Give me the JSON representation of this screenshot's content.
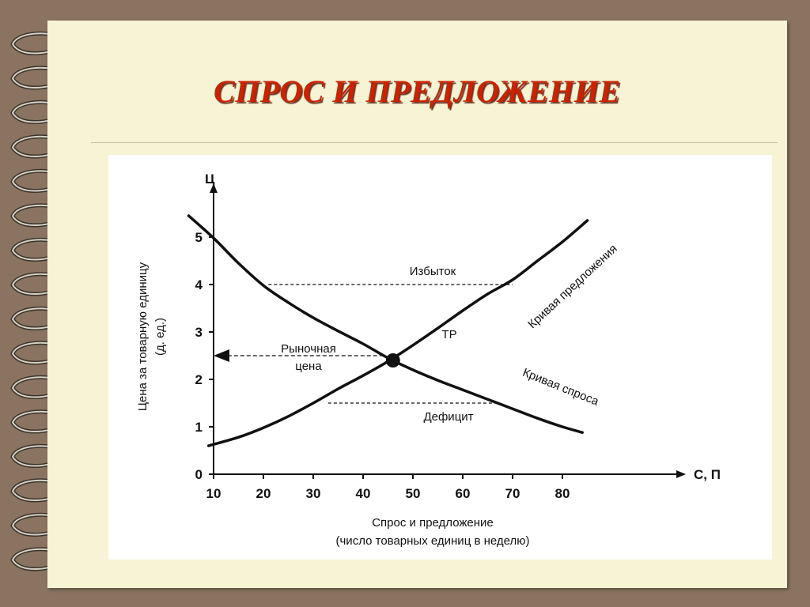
{
  "title": "СПРОС И ПРЕДЛОЖЕНИЕ",
  "colors": {
    "background": "#8a7461",
    "page": "#f7f3d5",
    "title": "#cc2200",
    "line": "#111111"
  },
  "chart_data": {
    "type": "line",
    "xlabel": "Спрос и предложение",
    "xlabel_sub": "(число товарных единиц в неделю)",
    "ylabel": "Цена за товарную единицу",
    "ylabel_sub": "(д. ед.)",
    "x_axis_symbol": "С, П",
    "y_axis_symbol": "Ц",
    "xlim": [
      0,
      95
    ],
    "ylim": [
      0,
      6
    ],
    "x_ticks": [
      10,
      20,
      30,
      40,
      50,
      60,
      70,
      80
    ],
    "y_ticks": [
      0,
      1,
      2,
      3,
      4,
      5
    ],
    "grid": false,
    "series": [
      {
        "name": "Кривая спроса",
        "x": [
          5,
          10,
          15,
          20,
          25,
          30,
          35,
          40,
          45,
          50,
          55,
          60,
          65,
          70,
          75,
          80,
          84
        ],
        "y": [
          5.45,
          4.98,
          4.45,
          3.98,
          3.62,
          3.3,
          3.02,
          2.75,
          2.45,
          2.2,
          1.98,
          1.78,
          1.58,
          1.38,
          1.18,
          1.0,
          0.88
        ]
      },
      {
        "name": "Кривая предложения",
        "x": [
          9,
          15,
          20,
          25,
          30,
          35,
          40,
          45,
          50,
          55,
          60,
          65,
          70,
          75,
          80,
          85
        ],
        "y": [
          0.6,
          0.78,
          0.98,
          1.22,
          1.5,
          1.8,
          2.08,
          2.38,
          2.72,
          3.08,
          3.45,
          3.8,
          4.1,
          4.5,
          4.9,
          5.35
        ]
      }
    ],
    "equilibrium": {
      "label": "ТР",
      "x": 46,
      "y": 2.4
    },
    "annotations": {
      "surplus": {
        "label": "Избыток",
        "y": 4,
        "x_from": 21,
        "x_to": 70
      },
      "deficit": {
        "label": "Дефицит",
        "y": 1.5,
        "x_from": 33,
        "x_to": 67
      },
      "market_price": {
        "label_line1": "Рыночная",
        "label_line2": "цена",
        "y": 2.5
      }
    }
  }
}
